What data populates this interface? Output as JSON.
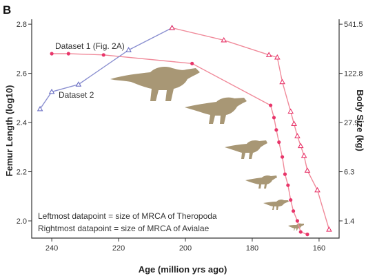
{
  "panel_label": "B",
  "chart_data": {
    "type": "line",
    "xlabel": "Age (million yrs ago)",
    "ylabel": "Femur Length (log10)",
    "y2label": "Body Size (kg)",
    "xlim": [
      246,
      154
    ],
    "ylim": [
      1.93,
      2.82
    ],
    "x_ticks": [
      240,
      220,
      200,
      180,
      160
    ],
    "y_ticks": [
      "2.0",
      "2.2",
      "2.4",
      "2.6",
      "2.8"
    ],
    "y_tick_values": [
      2.0,
      2.2,
      2.4,
      2.6,
      2.8
    ],
    "y2_ticks": [
      "541.5",
      "122.8",
      "27.9",
      "6.3",
      "1.4"
    ],
    "y2_tick_values": [
      2.8,
      2.6,
      2.4,
      2.2,
      2.0
    ],
    "series": [
      {
        "name": "Dataset 1 (Fig. 2A)",
        "color": "#e8356a",
        "line_color": "#f08a9a",
        "marker": "circle",
        "points": [
          {
            "x": 240,
            "y": 2.68
          },
          {
            "x": 235,
            "y": 2.68
          },
          {
            "x": 224.5,
            "y": 2.675
          },
          {
            "x": 198,
            "y": 2.64
          },
          {
            "x": 174.5,
            "y": 2.47
          },
          {
            "x": 173.5,
            "y": 2.42
          },
          {
            "x": 172.8,
            "y": 2.37
          },
          {
            "x": 172,
            "y": 2.32
          },
          {
            "x": 171,
            "y": 2.26
          },
          {
            "x": 170.2,
            "y": 2.19
          },
          {
            "x": 169.3,
            "y": 2.145
          },
          {
            "x": 168.5,
            "y": 2.085
          },
          {
            "x": 167.7,
            "y": 2.04
          },
          {
            "x": 166.5,
            "y": 2.0
          },
          {
            "x": 165.5,
            "y": 1.955
          },
          {
            "x": 163.5,
            "y": 1.945
          }
        ]
      },
      {
        "name": "Dataset 2",
        "color": "#6b6fc4",
        "line_color": "#8a8fd0",
        "marker": "triangle",
        "points": [
          {
            "x": 243.5,
            "y": 2.455
          },
          {
            "x": 240,
            "y": 2.525
          },
          {
            "x": 232,
            "y": 2.555
          },
          {
            "x": 217,
            "y": 2.695
          },
          {
            "x": 204,
            "y": 2.785
          }
        ]
      },
      {
        "name": "",
        "color": "#e8356a",
        "line_color": "#f08a9a",
        "marker": "triangle",
        "points": [
          {
            "x": 204,
            "y": 2.785
          },
          {
            "x": 188.5,
            "y": 2.735
          },
          {
            "x": 175,
            "y": 2.675
          },
          {
            "x": 172.5,
            "y": 2.665
          },
          {
            "x": 171,
            "y": 2.565
          },
          {
            "x": 168.5,
            "y": 2.445
          },
          {
            "x": 167.5,
            "y": 2.395
          },
          {
            "x": 166.5,
            "y": 2.345
          },
          {
            "x": 165.5,
            "y": 2.305
          },
          {
            "x": 164.5,
            "y": 2.265
          },
          {
            "x": 163.5,
            "y": 2.205
          },
          {
            "x": 160.5,
            "y": 2.125
          },
          {
            "x": 157,
            "y": 1.965
          }
        ]
      }
    ],
    "annotations": [
      "Leftmost datapoint = size of MRCA of Theropoda",
      "Rightmost datapoint = size of MRCA of Avialae"
    ],
    "grid": false,
    "legend": "inline labels"
  },
  "silhouettes": [
    "dinosaur-silhouette",
    "dinosaur-silhouette",
    "dinosaur-silhouette",
    "dinosaur-silhouette",
    "bird-silhouette",
    "bird-silhouette"
  ]
}
